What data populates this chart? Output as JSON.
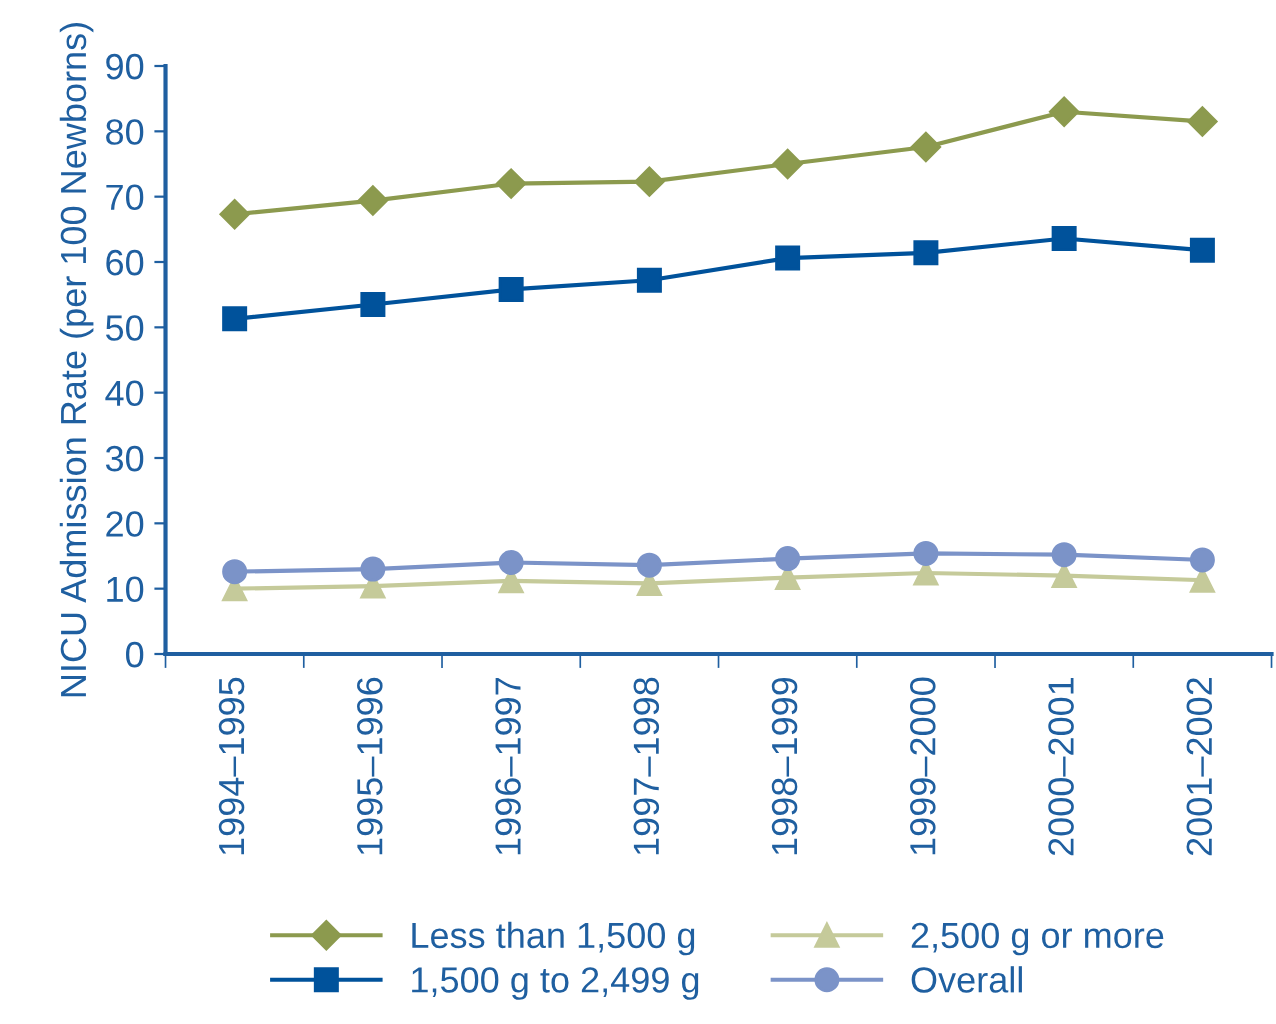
{
  "chart_data": {
    "type": "line",
    "ylabel": "NICU Admission Rate (per 100 Newborns)",
    "categories": [
      "1994–1995",
      "1995–1996",
      "1996–1997",
      "1997–1998",
      "1998–1999",
      "1999–2000",
      "2000–2001",
      "2001–2002"
    ],
    "series": [
      {
        "name": "Less than 1,500 g",
        "color": "#8c9a4e",
        "marker": "diamond",
        "values": [
          67.3,
          69.4,
          72,
          72.3,
          75,
          77.6,
          83,
          81.5
        ]
      },
      {
        "name": "1,500 g to 2,499 g",
        "color": "#00529b",
        "marker": "square",
        "values": [
          51.3,
          53.5,
          55.8,
          57.2,
          60.6,
          61.4,
          63.6,
          61.8
        ]
      },
      {
        "name": "2,500 g or more",
        "color": "#c5ca9a",
        "marker": "triangle",
        "values": [
          10.0,
          10.4,
          11.2,
          10.8,
          11.7,
          12.4,
          12.0,
          11.3
        ]
      },
      {
        "name": "Overall",
        "color": "#7b93c8",
        "marker": "circle",
        "values": [
          12.6,
          13.0,
          14.0,
          13.6,
          14.6,
          15.4,
          15.2,
          14.4
        ]
      }
    ],
    "ylim": [
      0,
      90
    ],
    "yticks": [
      0,
      10,
      20,
      30,
      40,
      50,
      60,
      70,
      80,
      90
    ],
    "grid": false,
    "legend": "bottom",
    "line_style": "solid"
  }
}
